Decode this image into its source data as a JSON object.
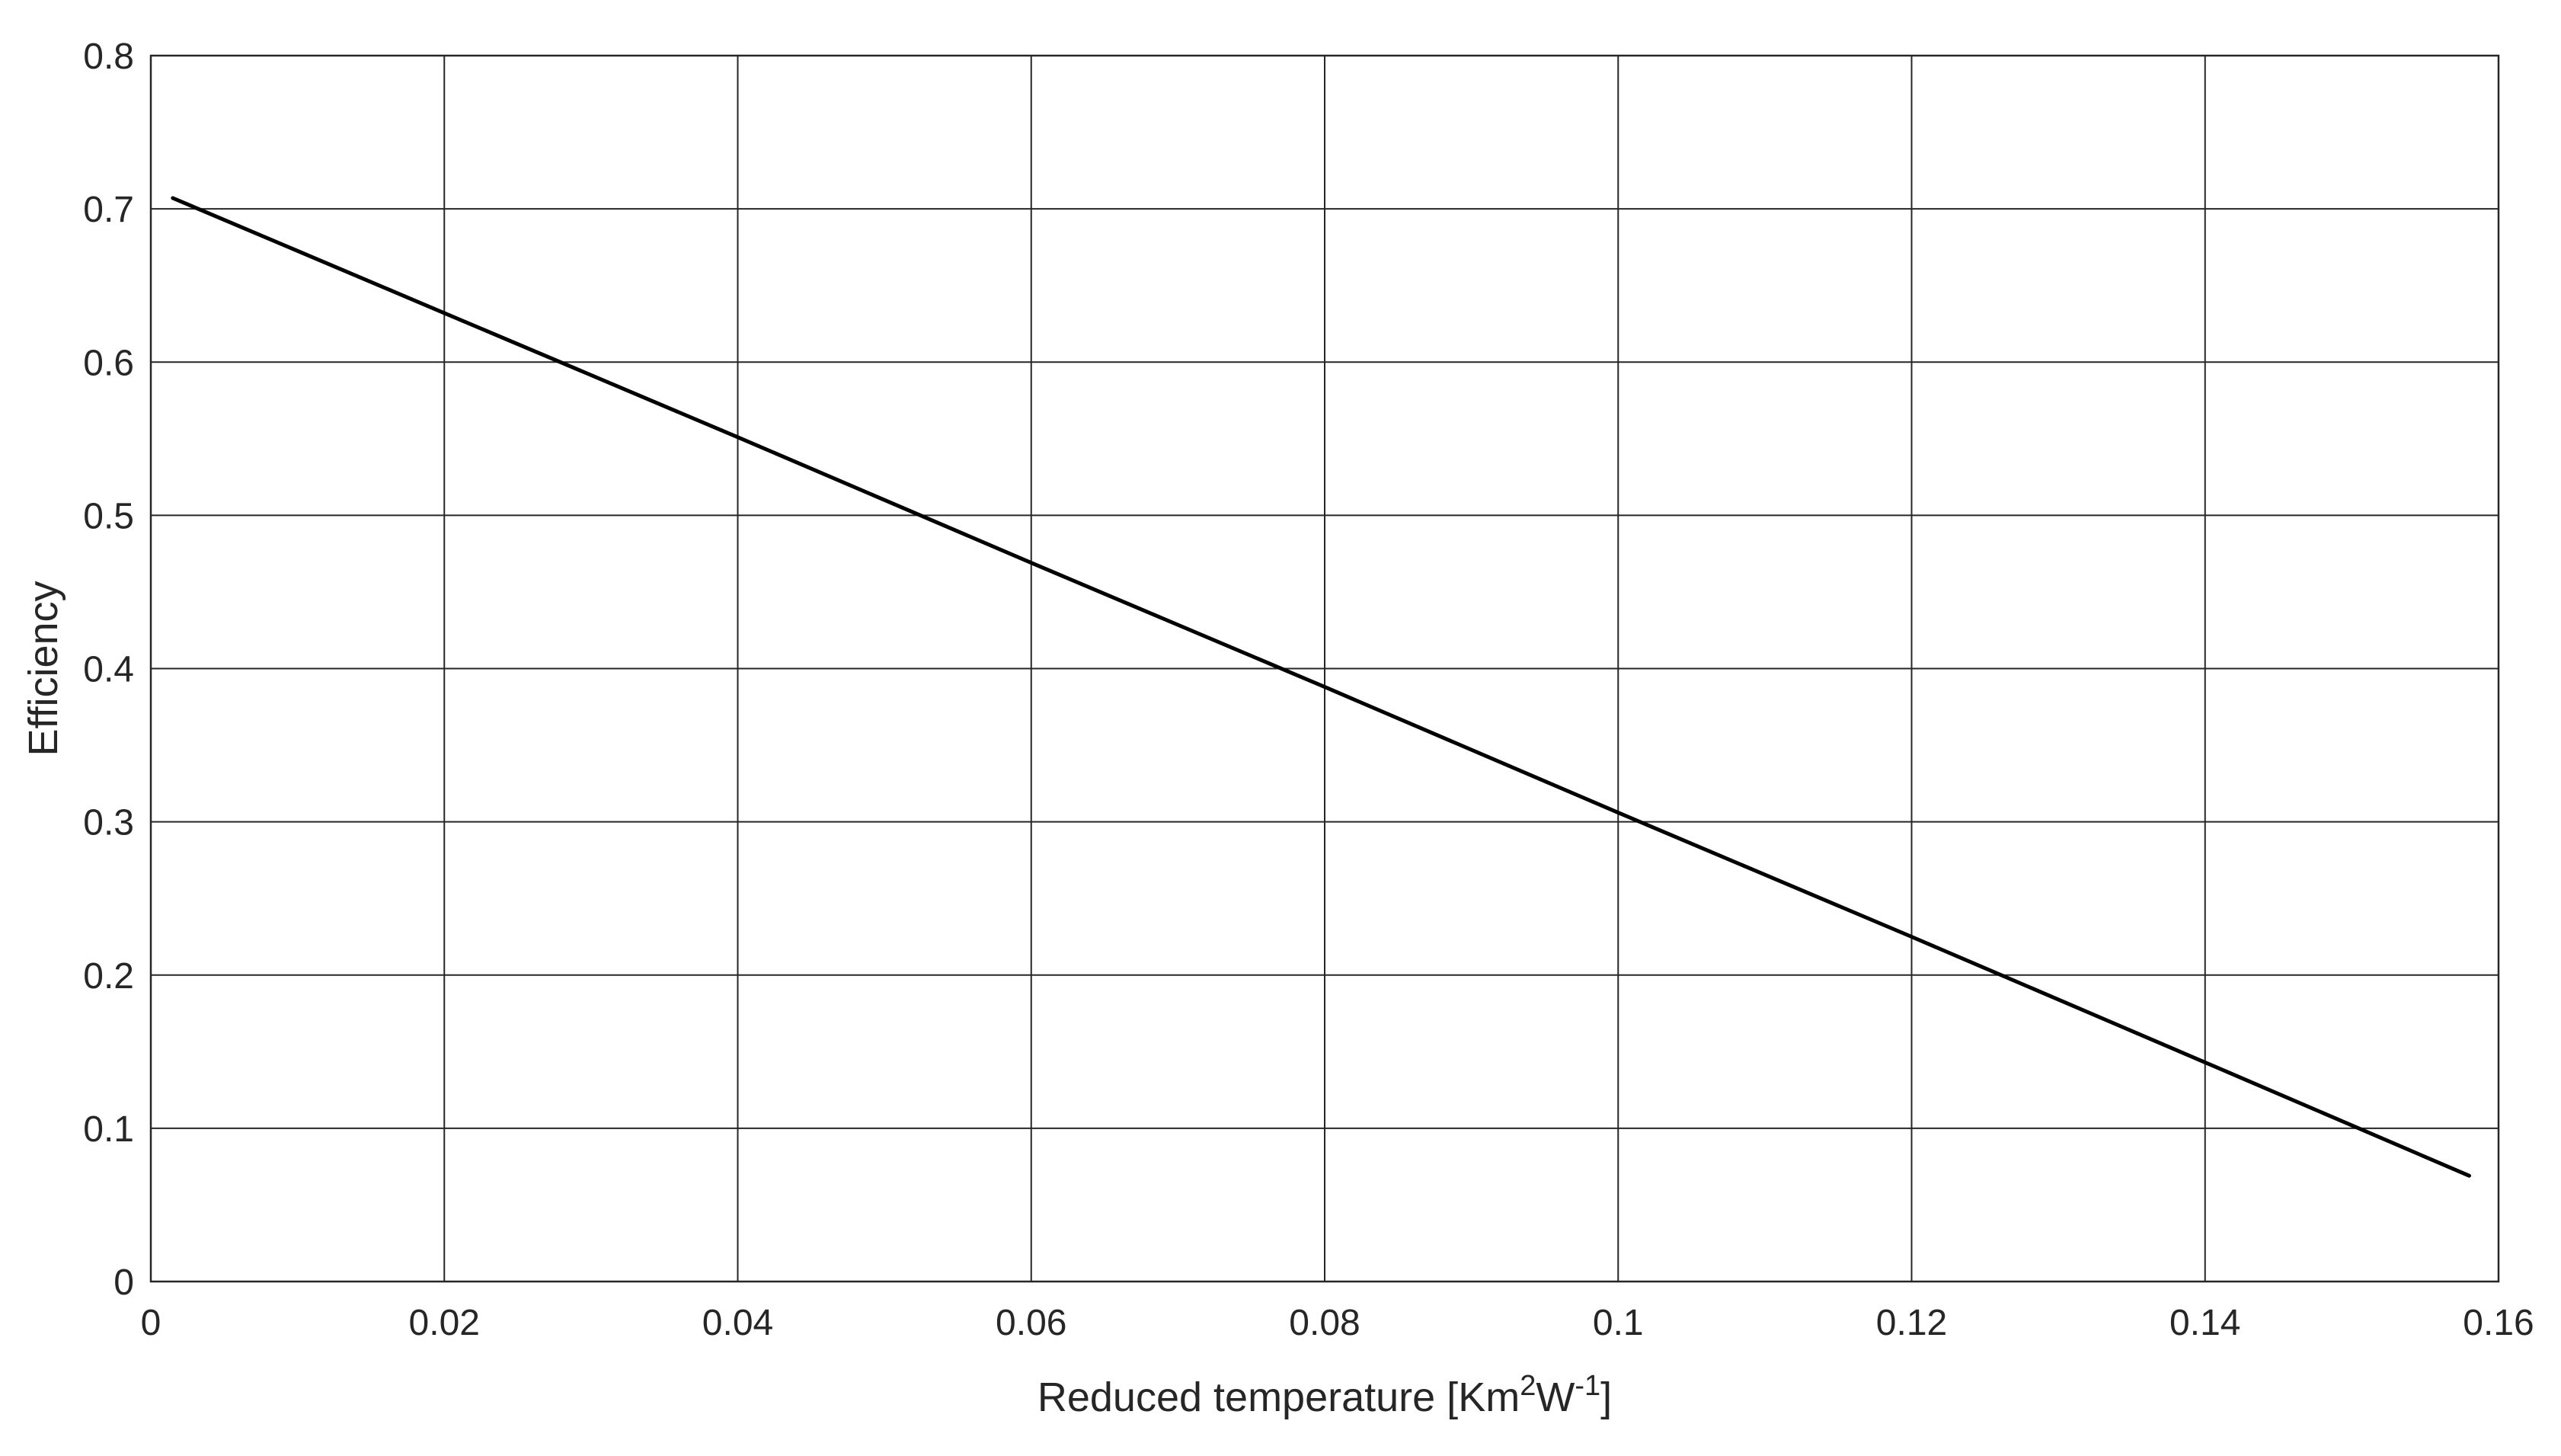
{
  "chart_data": {
    "type": "line",
    "title": "",
    "xlabel": {
      "base": "Reduced temperature [Km",
      "sup1": "2",
      "mid": "W",
      "sup2": "-1",
      "end": "]"
    },
    "ylabel": "Efficiency",
    "xlim": [
      0,
      0.16
    ],
    "ylim": [
      0,
      0.8
    ],
    "x_ticks": [
      "0",
      "0.02",
      "0.04",
      "0.06",
      "0.08",
      "0.1",
      "0.12",
      "0.14",
      "0.16"
    ],
    "y_ticks": [
      "0",
      "0.1",
      "0.2",
      "0.3",
      "0.4",
      "0.5",
      "0.6",
      "0.7",
      "0.8"
    ],
    "grid": true,
    "legend": "none",
    "series": [
      {
        "x": [
          0.0015,
          0.02,
          0.04,
          0.06,
          0.08,
          0.1,
          0.12,
          0.14,
          0.158
        ],
        "y": [
          0.707,
          0.632,
          0.551,
          0.469,
          0.388,
          0.306,
          0.225,
          0.143,
          0.069
        ],
        "color": "#000000"
      }
    ]
  }
}
